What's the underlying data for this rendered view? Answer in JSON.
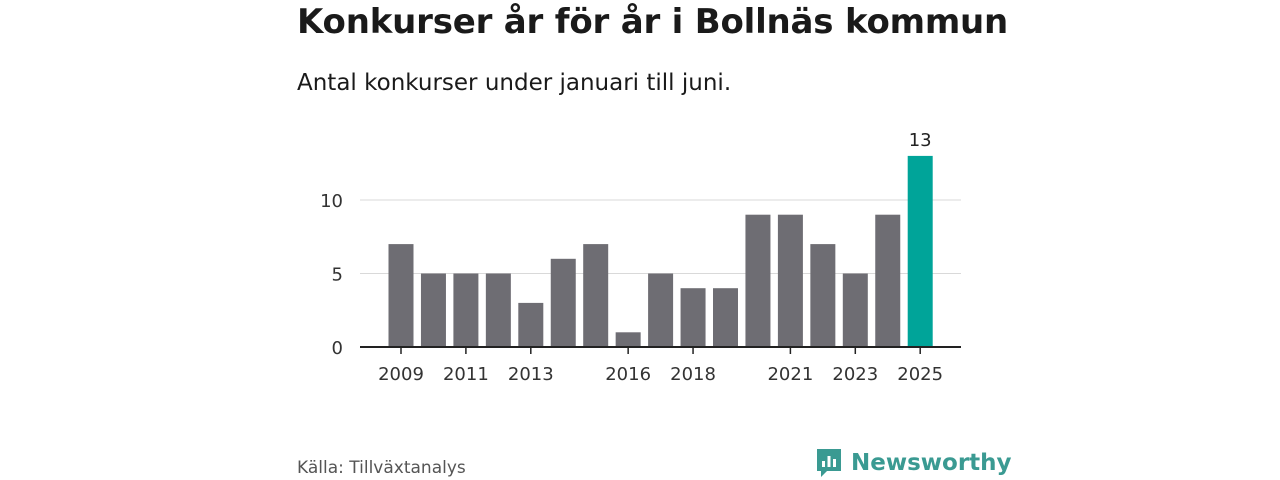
{
  "title": "Konkurser år för år i Bollnäs kommun",
  "subtitle": "Antal konkurser under januari till juni.",
  "source": "Källa: Tillväxtanalys",
  "brand": {
    "name": "Newsworthy",
    "icon": "newsworthy-logo-icon",
    "color": "#3a9a92"
  },
  "colors": {
    "bar": "#6e6d73",
    "highlight": "#00a499",
    "grid": "#d9d9d9",
    "axis": "#222222"
  },
  "chart_data": {
    "type": "bar",
    "x": [
      2009,
      2010,
      2011,
      2012,
      2013,
      2014,
      2015,
      2016,
      2017,
      2018,
      2019,
      2020,
      2021,
      2022,
      2023,
      2024,
      2025
    ],
    "values": [
      7,
      5,
      5,
      5,
      3,
      6,
      7,
      1,
      5,
      4,
      4,
      9,
      9,
      7,
      5,
      9,
      13
    ],
    "x_tick_labels": [
      "2009",
      "2011",
      "2013",
      "2016",
      "2018",
      "2021",
      "2023",
      "2025"
    ],
    "y_ticks": [
      0,
      5,
      10
    ],
    "ylim": [
      0,
      13
    ],
    "highlight": {
      "category": 2025,
      "label": "13"
    },
    "grid": true,
    "xlabel": "",
    "ylabel": ""
  }
}
